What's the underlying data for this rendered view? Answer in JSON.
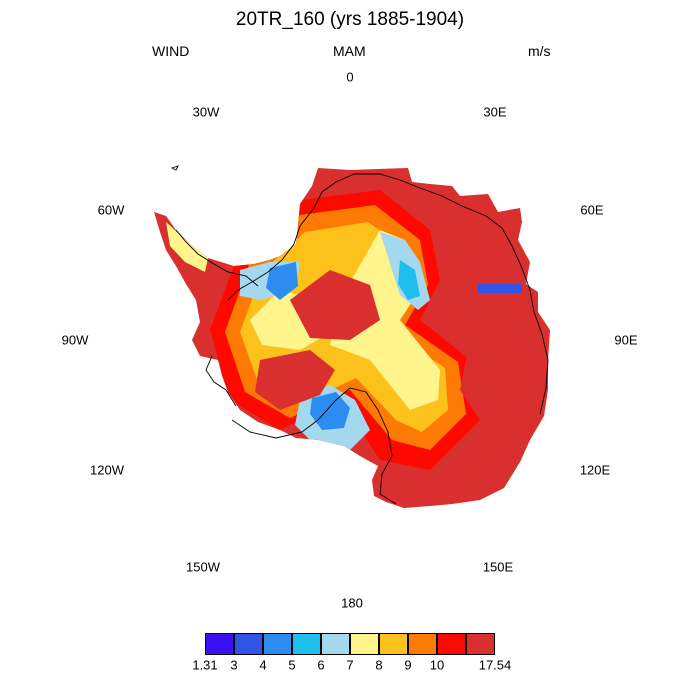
{
  "header": {
    "title": "20TR_160 (yrs 1885-1904)",
    "left": "WIND",
    "center": "MAM",
    "right": "m/s"
  },
  "longitude_labels": {
    "top": "0",
    "ne": "30E",
    "nw": "30W",
    "e60": "60E",
    "w60": "60W",
    "e90": "90E",
    "w90": "90W",
    "e120": "120E",
    "w120": "120W",
    "e150": "150E",
    "w150": "150W",
    "bottom": "180"
  },
  "map": {
    "variable": "WIND",
    "units": "m/s",
    "season": "MAM",
    "projection": "south polar stereographic"
  },
  "colorbar": {
    "colors": [
      "#3a0ff2",
      "#3153e6",
      "#2c8cf0",
      "#1ebfef",
      "#a4d8ef",
      "#fff58c",
      "#fdc11b",
      "#fd7a05",
      "#fd0900",
      "#d92f2f"
    ],
    "labels": [
      "1.31",
      "3",
      "4",
      "5",
      "6",
      "7",
      "8",
      "9",
      "10",
      "17.54"
    ]
  }
}
